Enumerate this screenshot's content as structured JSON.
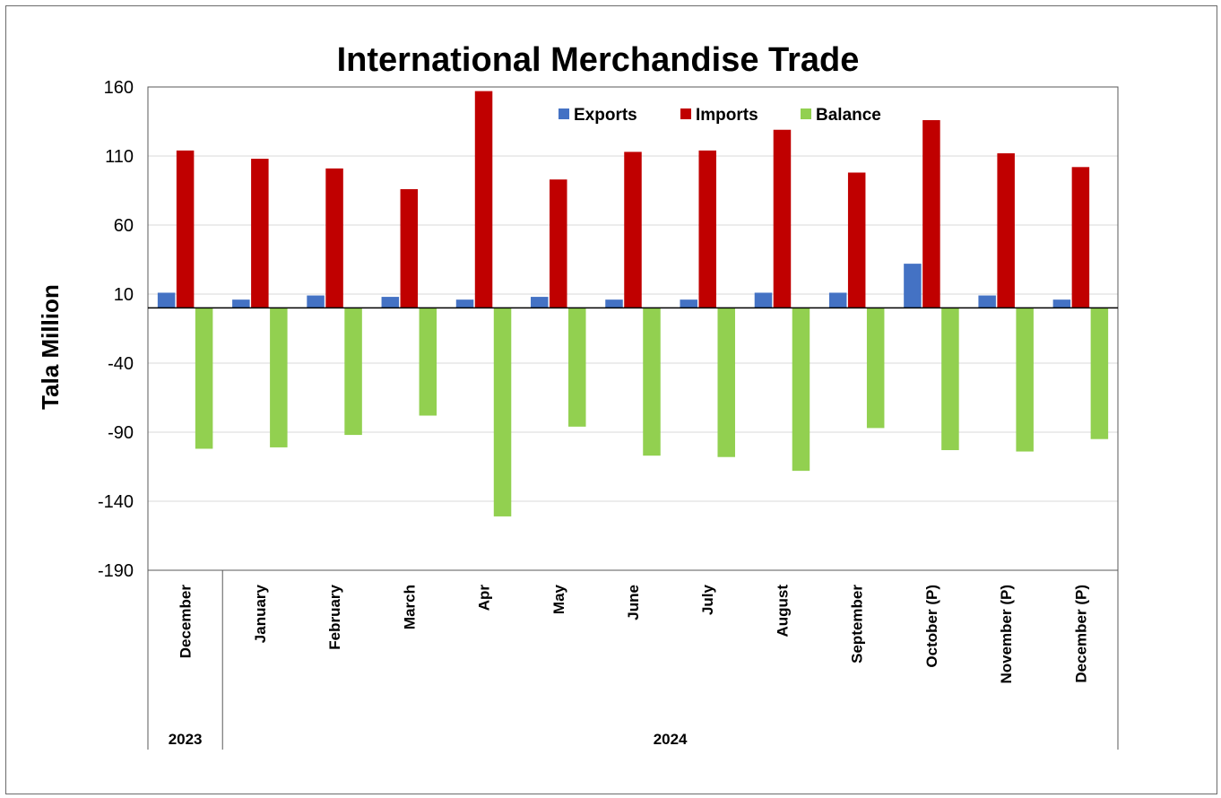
{
  "chart_data": {
    "type": "bar",
    "title": "International Merchandise Trade",
    "ylabel": "Tala Million",
    "xlabel": "",
    "ylim": [
      -190,
      160
    ],
    "yticks": [
      "160",
      "110",
      "60",
      "10",
      "-40",
      "-90",
      "-140",
      "-190"
    ],
    "grid": true,
    "legend_position": "top-right",
    "categories": [
      "December",
      "January",
      "February",
      "March",
      "Apr",
      "May",
      "June",
      "July",
      "August",
      "September",
      "October (P)",
      "November (P)",
      "December (P)"
    ],
    "year_groups": [
      {
        "label": "2023",
        "count": 1
      },
      {
        "label": "2024",
        "count": 12
      }
    ],
    "series": [
      {
        "name": "Exports",
        "color": "#4472C4",
        "values": [
          11,
          6,
          9,
          8,
          6,
          8,
          6,
          6,
          11,
          11,
          32,
          9,
          6
        ]
      },
      {
        "name": "Imports",
        "color": "#C00000",
        "values": [
          114,
          108,
          101,
          86,
          157,
          93,
          113,
          114,
          129,
          98,
          136,
          112,
          102
        ]
      },
      {
        "name": "Balance",
        "color": "#92D050",
        "values": [
          -102,
          -101,
          -92,
          -78,
          -151,
          -86,
          -107,
          -108,
          -118,
          -87,
          -103,
          -104,
          -95
        ]
      }
    ]
  }
}
